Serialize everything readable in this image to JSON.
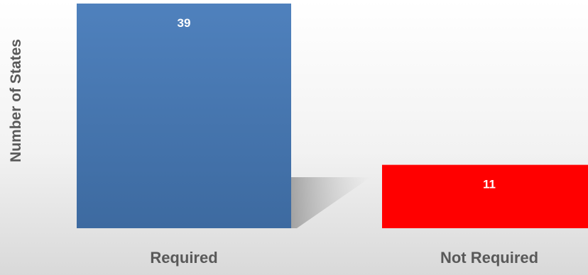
{
  "chart_data": {
    "type": "bar",
    "title": "",
    "xlabel": "",
    "ylabel": "Number of States",
    "categories": [
      "Required",
      "Not Required"
    ],
    "values": [
      39,
      11
    ],
    "ylim": [
      0,
      39
    ],
    "grid": false,
    "legend": "none",
    "data_labels": [
      "39",
      "11"
    ],
    "colors": {
      "bar_required_top": "#4f81bd",
      "bar_required_bottom": "#3d6aa0",
      "bar_not_required": "#ff0000",
      "data_label": "#ffffff",
      "axis_text": "#595959",
      "background_top": "#ffffff",
      "background_bottom": "#dcdcdc"
    }
  }
}
